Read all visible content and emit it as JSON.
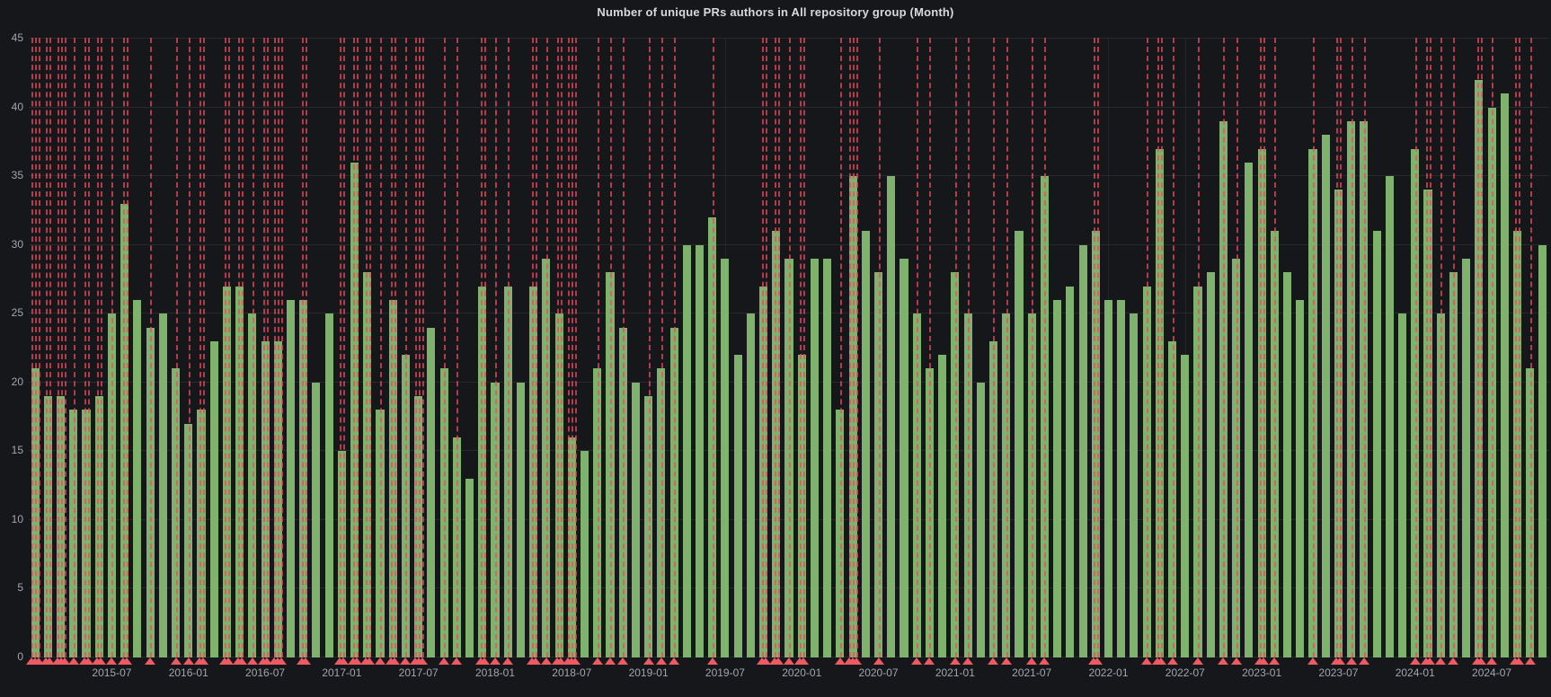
{
  "colors": {
    "background": "#15171b",
    "bar": "#7EB26D",
    "annotation": "#F2495C",
    "grid": "rgba(255,255,255,0.07)",
    "axis_text": "#a2a6ad",
    "title_text": "#d8d9da"
  },
  "chart_data": {
    "type": "bar",
    "title": "Number of unique PRs authors in All repository group (Month)",
    "xlabel": "",
    "ylabel": "",
    "ylim": [
      0,
      45
    ],
    "y_tick_step": 5,
    "y_tick_labels": [
      "0",
      "5",
      "10",
      "15",
      "20",
      "25",
      "30",
      "35",
      "40",
      "45"
    ],
    "grid": "on",
    "legend": "none",
    "x_unit": "month",
    "x_first_labeled_bar": 6,
    "x_label_every": 6,
    "x_tick_labels": [
      "2015-07",
      "2016-01",
      "2016-07",
      "2017-01",
      "2017-07",
      "2018-01",
      "2018-07",
      "2019-01",
      "2019-07",
      "2020-01",
      "2020-07",
      "2021-01",
      "2021-07",
      "2022-01",
      "2022-07",
      "2023-01",
      "2023-07",
      "2024-01",
      "2024-07"
    ],
    "values": [
      21,
      19,
      19,
      18,
      18,
      19,
      25,
      33,
      26,
      24,
      25,
      21,
      17,
      18,
      23,
      27,
      27,
      25,
      23,
      23,
      26,
      26,
      20,
      25,
      15,
      36,
      28,
      18,
      26,
      22,
      19,
      24,
      21,
      16,
      13,
      27,
      20,
      27,
      20,
      27,
      29,
      25,
      16,
      15,
      21,
      28,
      24,
      20,
      19,
      21,
      24,
      30,
      30,
      32,
      29,
      22,
      25,
      27,
      31,
      29,
      22,
      29,
      29,
      18,
      35,
      31,
      28,
      35,
      29,
      25,
      21,
      22,
      28,
      25,
      20,
      23,
      25,
      31,
      25,
      35,
      26,
      27,
      30,
      31,
      26,
      26,
      25,
      27,
      37,
      23,
      22,
      27,
      28,
      39,
      29,
      36,
      37,
      31,
      28,
      26,
      37,
      38,
      34,
      39,
      39,
      31,
      35,
      25,
      37,
      34,
      25,
      28,
      29,
      42,
      40,
      41,
      31,
      21,
      30
    ],
    "annotations_bar_index_and_line_count": [
      [
        0,
        3
      ],
      [
        1,
        2
      ],
      [
        2,
        3
      ],
      [
        3,
        1
      ],
      [
        4,
        2
      ],
      [
        5,
        2
      ],
      [
        6,
        1
      ],
      [
        7,
        2
      ],
      [
        9,
        1
      ],
      [
        11,
        1
      ],
      [
        12,
        1
      ],
      [
        13,
        2
      ],
      [
        15,
        2
      ],
      [
        16,
        2
      ],
      [
        17,
        1
      ],
      [
        18,
        2
      ],
      [
        19,
        3
      ],
      [
        21,
        2
      ],
      [
        24,
        2
      ],
      [
        25,
        2
      ],
      [
        26,
        2
      ],
      [
        27,
        1
      ],
      [
        28,
        2
      ],
      [
        29,
        1
      ],
      [
        30,
        3
      ],
      [
        32,
        1
      ],
      [
        33,
        1
      ],
      [
        35,
        2
      ],
      [
        36,
        1
      ],
      [
        37,
        1
      ],
      [
        39,
        2
      ],
      [
        40,
        1
      ],
      [
        41,
        2
      ],
      [
        42,
        3
      ],
      [
        44,
        1
      ],
      [
        45,
        1
      ],
      [
        46,
        1
      ],
      [
        48,
        1
      ],
      [
        49,
        1
      ],
      [
        50,
        1
      ],
      [
        53,
        1
      ],
      [
        57,
        2
      ],
      [
        58,
        2
      ],
      [
        59,
        1
      ],
      [
        60,
        2
      ],
      [
        63,
        1
      ],
      [
        64,
        3
      ],
      [
        66,
        1
      ],
      [
        69,
        1
      ],
      [
        70,
        1
      ],
      [
        72,
        1
      ],
      [
        73,
        1
      ],
      [
        75,
        1
      ],
      [
        76,
        1
      ],
      [
        78,
        1
      ],
      [
        79,
        1
      ],
      [
        83,
        2
      ],
      [
        87,
        1
      ],
      [
        88,
        2
      ],
      [
        89,
        1
      ],
      [
        91,
        1
      ],
      [
        93,
        1
      ],
      [
        94,
        1
      ],
      [
        96,
        2
      ],
      [
        97,
        1
      ],
      [
        100,
        1
      ],
      [
        102,
        2
      ],
      [
        103,
        1
      ],
      [
        104,
        1
      ],
      [
        108,
        1
      ],
      [
        109,
        2
      ],
      [
        110,
        1
      ],
      [
        111,
        1
      ],
      [
        113,
        2
      ],
      [
        114,
        1
      ],
      [
        116,
        2
      ],
      [
        117,
        1
      ]
    ]
  }
}
